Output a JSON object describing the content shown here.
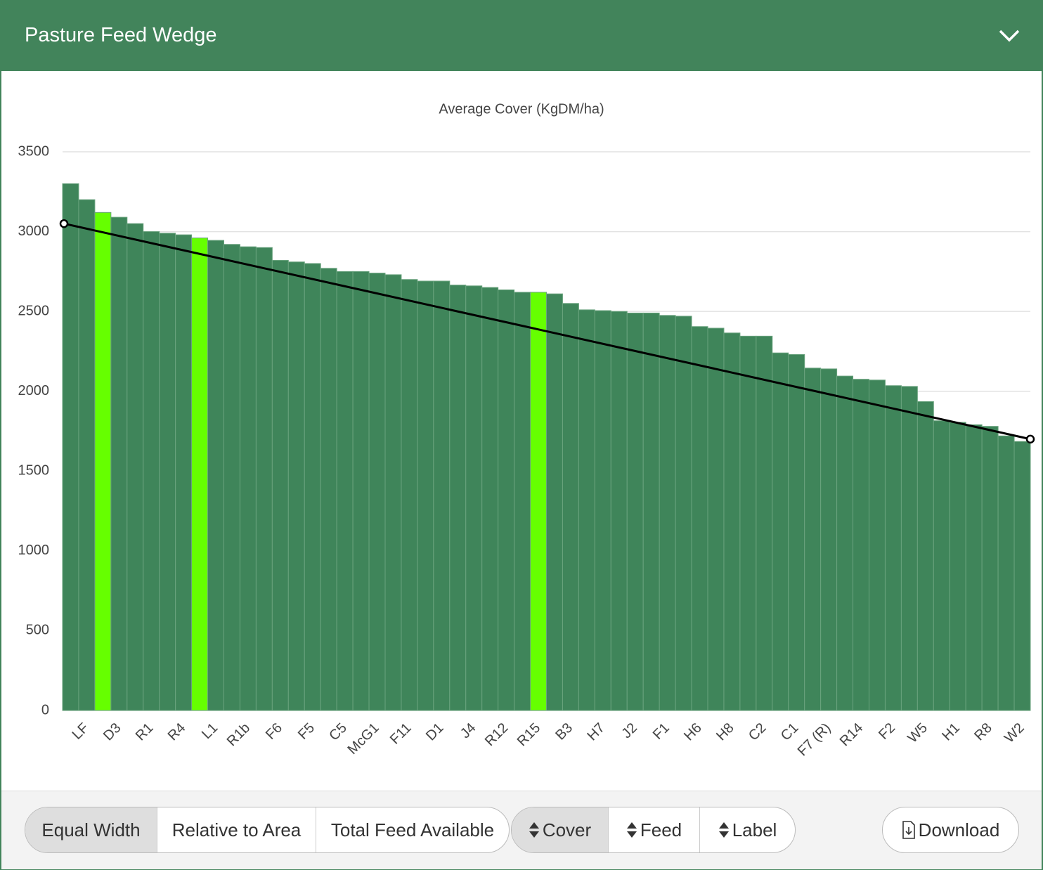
{
  "header": {
    "title": "Pasture Feed Wedge"
  },
  "chart_data": {
    "type": "bar",
    "title": "Average Cover (KgDM/ha)",
    "categories": [
      null,
      "LF",
      null,
      "D3",
      null,
      "R1",
      null,
      "R4",
      null,
      "L1",
      null,
      "R1b",
      null,
      "F6",
      null,
      "F5",
      null,
      "C5",
      null,
      "McG1",
      null,
      "F11",
      null,
      "D1",
      null,
      "J4",
      null,
      "R12",
      null,
      "R15",
      null,
      "B3",
      null,
      "H7",
      null,
      "J2",
      null,
      "F1",
      null,
      "H6",
      null,
      "H8",
      null,
      "C2",
      null,
      "C1",
      null,
      "F7 (R)",
      null,
      "R14",
      null,
      "F2",
      null,
      "W5",
      null,
      "H1",
      null,
      "R8",
      null,
      "W2"
    ],
    "values": [
      3300,
      3200,
      3120,
      3090,
      3050,
      3000,
      2990,
      2980,
      2960,
      2945,
      2920,
      2905,
      2900,
      2820,
      2810,
      2800,
      2770,
      2750,
      2750,
      2740,
      2730,
      2700,
      2690,
      2690,
      2665,
      2660,
      2650,
      2635,
      2620,
      2620,
      2610,
      2550,
      2510,
      2505,
      2500,
      2490,
      2490,
      2475,
      2470,
      2405,
      2395,
      2365,
      2345,
      2345,
      2240,
      2230,
      2145,
      2140,
      2095,
      2075,
      2070,
      2035,
      2030,
      1935,
      1815,
      1805,
      1790,
      1780,
      1720,
      1685
    ],
    "colors": [
      "#3f855a",
      "#3f855a",
      "#66ff00",
      "#3f855a",
      "#3f855a",
      "#3f855a",
      "#3f855a",
      "#3f855a",
      "#66ff00",
      "#3f855a",
      "#3f855a",
      "#3f855a",
      "#3f855a",
      "#3f855a",
      "#3f855a",
      "#3f855a",
      "#3f855a",
      "#3f855a",
      "#3f855a",
      "#3f855a",
      "#3f855a",
      "#3f855a",
      "#3f855a",
      "#3f855a",
      "#3f855a",
      "#3f855a",
      "#3f855a",
      "#3f855a",
      "#3f855a",
      "#66ff00",
      "#3f855a",
      "#3f855a",
      "#3f855a",
      "#3f855a",
      "#3f855a",
      "#3f855a",
      "#3f855a",
      "#3f855a",
      "#3f855a",
      "#3f855a",
      "#3f855a",
      "#3f855a",
      "#3f855a",
      "#3f855a",
      "#3f855a",
      "#3f855a",
      "#3f855a",
      "#3f855a",
      "#3f855a",
      "#3f855a",
      "#3f855a",
      "#3f855a",
      "#3f855a",
      "#3f855a",
      "#3f855a",
      "#3f855a",
      "#3f855a",
      "#3f855a",
      "#3f855a",
      "#3f855a"
    ],
    "trend_line": {
      "color": "#000000",
      "values": [
        3050,
        1700
      ]
    },
    "ylim": [
      0,
      3500
    ],
    "yticks": [
      0,
      500,
      1000,
      1500,
      2000,
      2500,
      3000,
      3500
    ],
    "grid": true
  },
  "toolbar": {
    "width_options": [
      "Equal Width",
      "Relative to Area",
      "Total Feed Available"
    ],
    "sort_options": [
      "Cover",
      "Feed",
      "Label"
    ],
    "download": "Download"
  }
}
